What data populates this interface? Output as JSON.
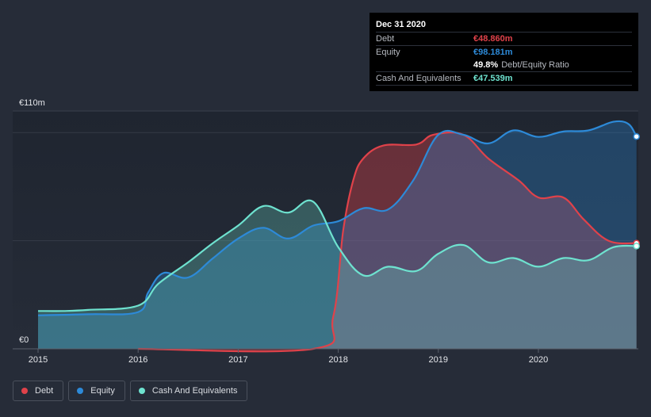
{
  "chart_data": {
    "type": "area",
    "y_axis": {
      "max_label": "€110m",
      "min_label": "€0",
      "ylim": [
        0,
        110
      ]
    },
    "x_axis": {
      "ticks": [
        "2015",
        "2016",
        "2017",
        "2018",
        "2019",
        "2020"
      ],
      "xlim": [
        2014.8,
        2020.98
      ]
    },
    "series": [
      {
        "name": "Debt",
        "color": "#e0424a",
        "points": [
          [
            2016.0,
            0
          ],
          [
            2017.75,
            0
          ],
          [
            2017.95,
            15
          ],
          [
            2018.05,
            55
          ],
          [
            2018.15,
            78
          ],
          [
            2018.25,
            88
          ],
          [
            2018.45,
            94
          ],
          [
            2018.78,
            94.5
          ],
          [
            2018.95,
            99
          ],
          [
            2019.25,
            99
          ],
          [
            2019.5,
            88
          ],
          [
            2019.8,
            78
          ],
          [
            2020.0,
            70
          ],
          [
            2020.25,
            70
          ],
          [
            2020.45,
            60
          ],
          [
            2020.7,
            50
          ],
          [
            2020.98,
            48.86
          ]
        ]
      },
      {
        "name": "Equity",
        "color": "#2d8ad8",
        "points": [
          [
            2015.0,
            15.5
          ],
          [
            2015.5,
            16
          ],
          [
            2016.0,
            17
          ],
          [
            2016.1,
            26
          ],
          [
            2016.25,
            35
          ],
          [
            2016.5,
            33
          ],
          [
            2016.75,
            42
          ],
          [
            2017.0,
            51
          ],
          [
            2017.25,
            56
          ],
          [
            2017.5,
            51
          ],
          [
            2017.75,
            57
          ],
          [
            2018.0,
            59
          ],
          [
            2018.25,
            65
          ],
          [
            2018.5,
            64.5
          ],
          [
            2018.75,
            78
          ],
          [
            2019.0,
            99
          ],
          [
            2019.25,
            99
          ],
          [
            2019.5,
            95
          ],
          [
            2019.75,
            101
          ],
          [
            2020.0,
            98
          ],
          [
            2020.25,
            100.5
          ],
          [
            2020.5,
            101
          ],
          [
            2020.75,
            105
          ],
          [
            2020.9,
            104
          ],
          [
            2020.98,
            98.181
          ]
        ]
      },
      {
        "name": "Cash And Equivalents",
        "color": "#6ee2cf",
        "points": [
          [
            2015.0,
            17.5
          ],
          [
            2015.25,
            17.5
          ],
          [
            2015.5,
            18
          ],
          [
            2016.0,
            20
          ],
          [
            2016.2,
            30
          ],
          [
            2016.5,
            40
          ],
          [
            2016.75,
            49
          ],
          [
            2017.0,
            57
          ],
          [
            2017.25,
            66
          ],
          [
            2017.5,
            63
          ],
          [
            2017.75,
            68
          ],
          [
            2018.0,
            47
          ],
          [
            2018.25,
            34
          ],
          [
            2018.5,
            38
          ],
          [
            2018.78,
            36
          ],
          [
            2019.0,
            44
          ],
          [
            2019.25,
            48
          ],
          [
            2019.5,
            40
          ],
          [
            2019.75,
            42
          ],
          [
            2020.0,
            38
          ],
          [
            2020.25,
            42
          ],
          [
            2020.5,
            41
          ],
          [
            2020.75,
            47
          ],
          [
            2020.98,
            47.539
          ]
        ]
      }
    ]
  },
  "tooltip": {
    "date": "Dec 31 2020",
    "debt_label": "Debt",
    "debt_value": "€48.860m",
    "equity_label": "Equity",
    "equity_value": "€98.181m",
    "ratio_pct": "49.8%",
    "ratio_label": "Debt/Equity Ratio",
    "cash_label": "Cash And Equivalents",
    "cash_value": "€47.539m"
  },
  "legend": {
    "debt": "Debt",
    "equity": "Equity",
    "cash": "Cash And Equivalents"
  },
  "colors": {
    "background": "#262c38",
    "debt": "#e0424a",
    "equity": "#2d8ad8",
    "cash": "#6ee2cf"
  }
}
